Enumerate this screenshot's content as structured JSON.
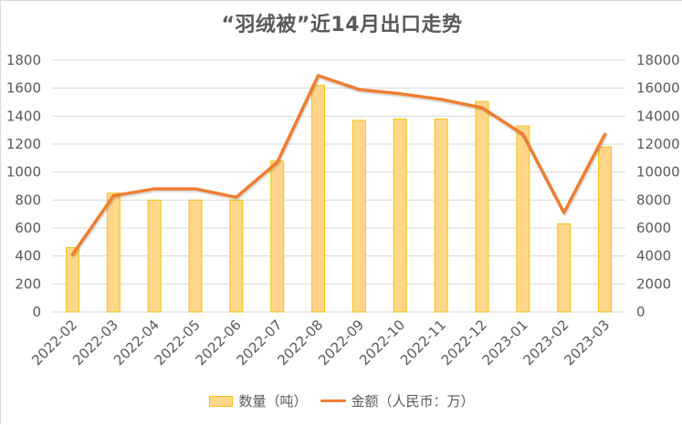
{
  "chart_data": {
    "type": "bar+line",
    "title": "“羽绒被”近14月出口走势",
    "categories": [
      "2022-02",
      "2022-03",
      "2022-04",
      "2022-05",
      "2022-06",
      "2022-07",
      "2022-08",
      "2022-09",
      "2022-10",
      "2022-11",
      "2022-12",
      "2023-01",
      "2023-02",
      "2023-03"
    ],
    "series": [
      {
        "name": "数量（吨）",
        "type": "bar",
        "axis": "left",
        "color": "#ffd68a",
        "border_color": "#f2c318",
        "values": [
          460,
          850,
          800,
          800,
          800,
          1080,
          1620,
          1370,
          1380,
          1380,
          1505,
          1330,
          630,
          1180
        ]
      },
      {
        "name": "金额（人民币：万）",
        "type": "line",
        "axis": "right",
        "color": "#ed7d31",
        "values": [
          4100,
          8300,
          8800,
          8800,
          8200,
          10700,
          16900,
          15900,
          15600,
          15200,
          14600,
          12700,
          7100,
          12700
        ]
      }
    ],
    "y_left": {
      "min": 0,
      "max": 1800,
      "ticks": [
        "0",
        "200",
        "400",
        "600",
        "800",
        "1000",
        "1200",
        "1400",
        "1600",
        "1800"
      ]
    },
    "y_right": {
      "min": 0,
      "max": 18000,
      "ticks": [
        "0",
        "2000",
        "4000",
        "6000",
        "8000",
        "10000",
        "12000",
        "14000",
        "16000",
        "18000"
      ]
    },
    "xlabel": "",
    "ylabel": "",
    "grid": true,
    "legend_position": "bottom"
  },
  "legend": {
    "bar_label": "数量（吨）",
    "line_label": "金额（人民币：万）"
  }
}
